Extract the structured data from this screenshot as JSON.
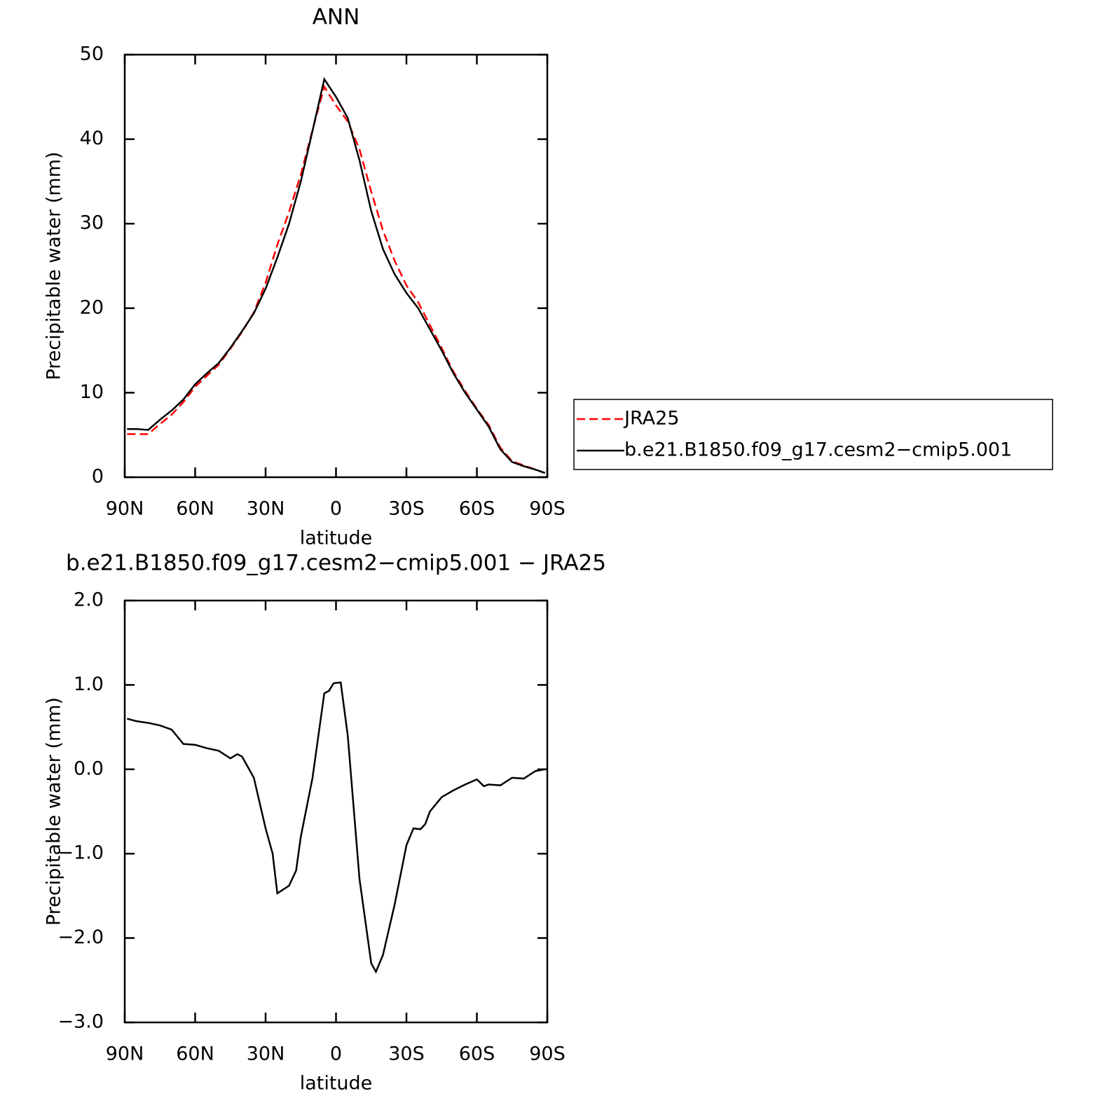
{
  "chart_data": [
    {
      "type": "line",
      "title": "ANN",
      "x_label": "latitude",
      "y_label": "Precipitable water (mm)",
      "x": [
        89,
        85,
        80,
        75,
        70,
        65,
        60,
        55,
        50,
        45,
        40,
        35,
        30,
        25,
        20,
        15,
        10,
        5,
        0,
        -5,
        -10,
        -15,
        -20,
        -25,
        -30,
        -35,
        -40,
        -45,
        -50,
        -55,
        -60,
        -65,
        -70,
        -75,
        -80,
        -85,
        -89
      ],
      "series": [
        {
          "name": "JRA25",
          "color": "#ff0000",
          "linestyle": "dashed",
          "values": [
            5.1,
            5.1,
            5.1,
            6.3,
            7.4,
            8.9,
            10.7,
            12.0,
            13.3,
            15.2,
            17.2,
            19.5,
            23.0,
            27.5,
            31.4,
            35.8,
            41.1,
            46.2,
            44.0,
            42.1,
            38.8,
            33.8,
            29.2,
            25.6,
            22.7,
            20.7,
            18.0,
            15.3,
            12.5,
            10.2,
            8.1,
            6.2,
            3.5,
            1.9,
            1.4,
            0.9,
            0.5
          ]
        },
        {
          "name": "b.e21.B1850.f09_g17.cesm2−cmip5.001",
          "color": "#000000",
          "linestyle": "solid",
          "values": [
            5.7,
            5.7,
            5.6,
            6.8,
            7.9,
            9.2,
            11.0,
            12.3,
            13.5,
            15.3,
            17.3,
            19.4,
            22.3,
            26.0,
            30.0,
            35.0,
            41.0,
            47.1,
            45.0,
            42.5,
            37.5,
            31.5,
            27.0,
            24.0,
            21.8,
            20.0,
            17.5,
            15.0,
            12.3,
            10.0,
            8.0,
            6.0,
            3.3,
            1.8,
            1.3,
            0.9,
            0.5
          ]
        }
      ],
      "xlim": [
        90,
        -90
      ],
      "xticks": [
        {
          "value": 90,
          "label": "90N"
        },
        {
          "value": 60,
          "label": "60N"
        },
        {
          "value": 30,
          "label": "30N"
        },
        0,
        {
          "value": -30,
          "label": "30S"
        },
        {
          "value": -60,
          "label": "60S"
        },
        {
          "value": -90,
          "label": "90S"
        }
      ],
      "ylim": [
        0,
        50
      ],
      "yticks": [
        0,
        10,
        20,
        30,
        40,
        50
      ],
      "legend": "right"
    },
    {
      "type": "line",
      "title": "b.e21.B1850.f09_g17.cesm2−cmip5.001 − JRA25",
      "x_label": "latitude",
      "y_label": "Precipitable water (mm)",
      "x": [
        89,
        85,
        80,
        75,
        70,
        65,
        60,
        55,
        50,
        45,
        42,
        40,
        35,
        30,
        27,
        25,
        20,
        17,
        15,
        10,
        5,
        3,
        1,
        -2,
        -5,
        -10,
        -15,
        -17,
        -20,
        -25,
        -30,
        -33,
        -36,
        -38,
        -40,
        -45,
        -50,
        -55,
        -60,
        -63,
        -65,
        -70,
        -75,
        -80,
        -85,
        -89
      ],
      "values": [
        0.6,
        0.57,
        0.55,
        0.52,
        0.47,
        0.3,
        0.29,
        0.25,
        0.22,
        0.13,
        0.18,
        0.15,
        -0.1,
        -0.7,
        -1.0,
        -1.47,
        -1.38,
        -1.2,
        -0.8,
        -0.1,
        0.9,
        0.93,
        1.02,
        1.03,
        0.4,
        -1.3,
        -2.3,
        -2.4,
        -2.2,
        -1.6,
        -0.9,
        -0.7,
        -0.71,
        -0.65,
        -0.5,
        -0.33,
        -0.25,
        -0.18,
        -0.12,
        -0.2,
        -0.18,
        -0.19,
        -0.1,
        -0.11,
        -0.02,
        0.0
      ],
      "color": "#000000",
      "xlim": [
        90,
        -90
      ],
      "xticks": [
        {
          "value": 90,
          "label": "90N"
        },
        {
          "value": 60,
          "label": "60N"
        },
        {
          "value": 30,
          "label": "30N"
        },
        0,
        {
          "value": -30,
          "label": "30S"
        },
        {
          "value": -60,
          "label": "60S"
        },
        {
          "value": -90,
          "label": "90S"
        }
      ],
      "ylim": [
        -3,
        2
      ],
      "yticks": [
        {
          "value": -3,
          "label": "−3.0"
        },
        {
          "value": -2,
          "label": "−2.0"
        },
        {
          "value": -1,
          "label": "−1.0"
        },
        {
          "value": 0,
          "label": "0.0"
        },
        {
          "value": 1,
          "label": "1.0"
        },
        {
          "value": 2,
          "label": "2.0"
        }
      ]
    }
  ]
}
